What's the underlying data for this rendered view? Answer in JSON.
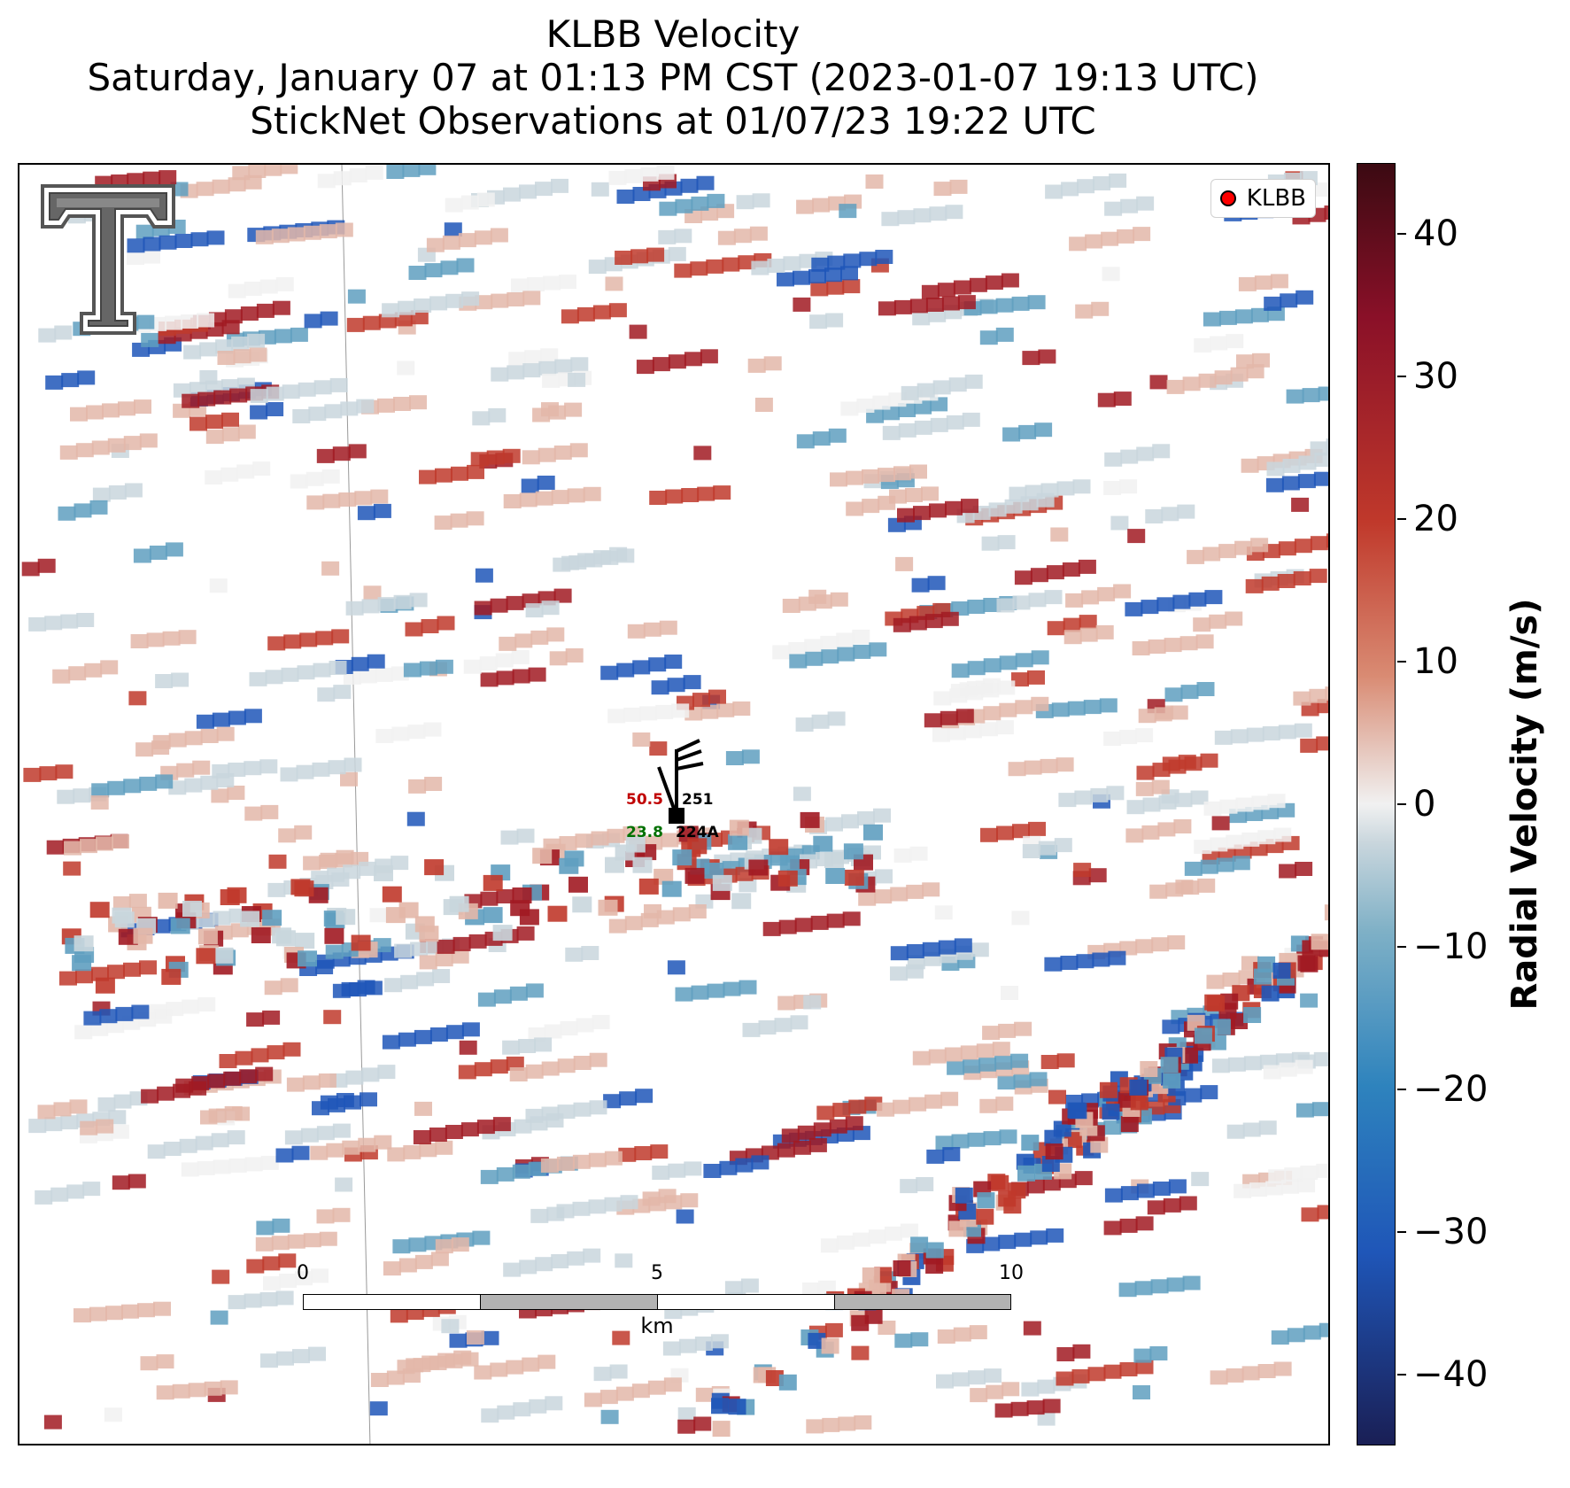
{
  "title": {
    "line1": "KLBB Velocity",
    "line2": "Saturday, January 07 at 01:13 PM CST (2023-01-07 19:13 UTC)",
    "line3": "StickNet Observations at 01/07/23 19:22 UTC"
  },
  "legend": {
    "label": "KLBB",
    "marker_color": "#ff0000"
  },
  "logo": {
    "name": "Texas Tech Double T"
  },
  "stations": [
    {
      "id": "251",
      "value": "50.5",
      "value_color": "#c00000"
    },
    {
      "id": "224A",
      "value": "23.8",
      "value_color": "#007000"
    }
  ],
  "scalebar": {
    "ticks": [
      "0",
      "5",
      "10"
    ],
    "unit": "km"
  },
  "colorbar": {
    "label": "Radial Velocity (m/s)",
    "ticks": [
      "40",
      "30",
      "20",
      "10",
      "0",
      "−10",
      "−20",
      "−30",
      "−40"
    ],
    "range": [
      -45,
      45
    ],
    "colors": {
      "max_positive": "#3b0a12",
      "strong_positive": "#a11a22",
      "positive": "#c0392b",
      "weak_positive": "#e3b7a9",
      "zero": "#f1f1f1",
      "weak_negative": "#c9d6dd",
      "negative": "#5f9fc0",
      "strong_negative": "#1f56b8",
      "max_negative": "#1a1f55"
    }
  }
}
